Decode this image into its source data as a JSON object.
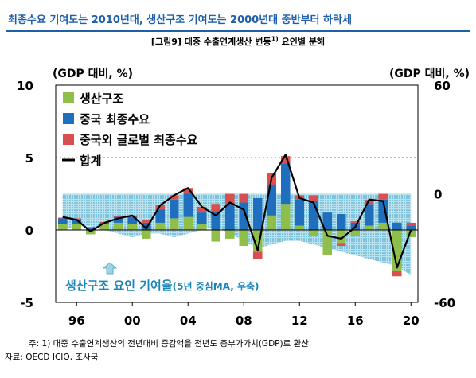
{
  "header": {
    "headline": "최종수요 기여도는 2010년대, 생산구조 기여도는 2000년대 중반부터 하락세",
    "figure_label": "[그림9] 대중 수출연계생산 변동",
    "figure_sup": "1)",
    "figure_suffix": " 요인별 분해"
  },
  "footer": {
    "note": "주: 1) 대중 수출연계생산의 전년대비 증감액을 전년도 총부가가치(GDP)로 환산",
    "source": "자료: OECD ICIO, 조사국"
  },
  "chart_data": {
    "type": "bar",
    "categories": [
      "95",
      "96",
      "97",
      "98",
      "99",
      "00",
      "01",
      "02",
      "03",
      "04",
      "05",
      "06",
      "07",
      "08",
      "09",
      "10",
      "11",
      "12",
      "13",
      "14",
      "15",
      "16",
      "17",
      "18",
      "19",
      "20"
    ],
    "x_tick_labels": [
      "96",
      "00",
      "04",
      "08",
      "12",
      "16",
      "20"
    ],
    "ylabel_left": "(GDP 대비, %)",
    "ylabel_right": "(GDP 대비, %)",
    "ylim_left": [
      -5,
      10
    ],
    "yticks_left": [
      10,
      5,
      0,
      -5
    ],
    "ylim_right": [
      -60,
      60
    ],
    "yticks_right": [
      60,
      0,
      -60
    ],
    "series": [
      {
        "name": "생산구조",
        "color": "#8fbf4a",
        "values": [
          0.4,
          0.4,
          -0.3,
          0.4,
          0.5,
          0.4,
          -0.6,
          0.5,
          0.8,
          0.9,
          0.4,
          -0.8,
          -0.6,
          -1.1,
          -1.5,
          1.0,
          1.8,
          0.3,
          -0.4,
          -1.7,
          -0.9,
          -0.4,
          0.3,
          0.5,
          -2.8,
          -0.5
        ]
      },
      {
        "name": "중국 최종수요",
        "color": "#1f6fbe",
        "values": [
          0.4,
          0.3,
          0.2,
          0.1,
          0.4,
          0.5,
          0.5,
          0.9,
          1.3,
          1.6,
          0.8,
          1.3,
          1.8,
          1.9,
          2.2,
          2.1,
          2.8,
          1.8,
          2.0,
          1.2,
          1.1,
          0.5,
          1.5,
          1.6,
          0.5,
          0.3
        ]
      },
      {
        "name": "중국외 글로벌 최종수요",
        "color": "#d94f4f",
        "values": [
          0.05,
          0.1,
          0.0,
          0.05,
          0.05,
          0.1,
          0.2,
          0.3,
          0.3,
          0.4,
          0.4,
          0.5,
          0.7,
          0.6,
          -0.5,
          0.8,
          0.5,
          0.3,
          0.4,
          0.0,
          -0.2,
          0.1,
          0.3,
          0.4,
          -0.4,
          0.2
        ]
      },
      {
        "name": "합계",
        "color": "#000000",
        "type": "line",
        "values": [
          0.9,
          0.7,
          -0.1,
          0.5,
          0.8,
          1.0,
          0.1,
          1.7,
          2.4,
          2.9,
          1.6,
          1.0,
          1.9,
          1.4,
          -1.4,
          3.6,
          5.2,
          2.2,
          1.9,
          -0.4,
          -0.6,
          0.2,
          2.1,
          2.0,
          -2.6,
          0.0
        ]
      },
      {
        "name": "생산구조 요인 기여율",
        "color": "#5bb8d6",
        "type": "area",
        "axis": "right",
        "pattern": "dotted",
        "values": [
          -20,
          -18,
          -18,
          -20,
          -22,
          -24,
          -22,
          -22,
          -24,
          -22,
          -20,
          -18,
          -22,
          -26,
          -30,
          -28,
          -26,
          -26,
          -28,
          -30,
          -32,
          -34,
          -36,
          -38,
          -40,
          -45
        ]
      }
    ],
    "area_annotation_main": "생산구조 요인 기여율",
    "area_annotation_detail": "(5년 중심MA, 우축)",
    "legend_position": "top-left"
  }
}
